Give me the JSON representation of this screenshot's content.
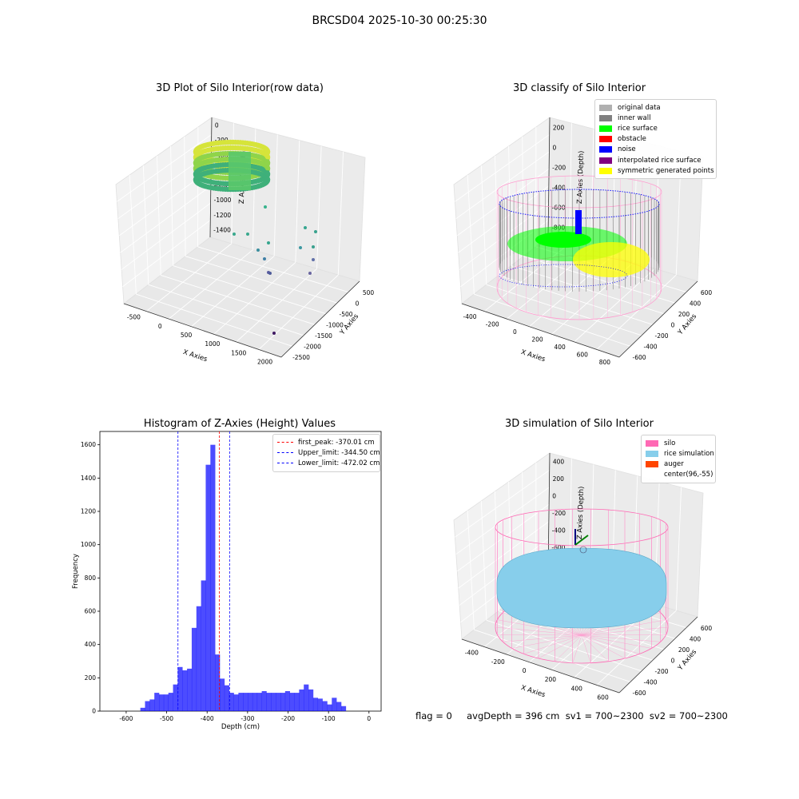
{
  "suptitle": "BRCSD04 2025-10-30 00:25:30",
  "footer": "flag = 0     avgDepth = 396 cm  sv1 = 700~2300  sv2 = 700~2300",
  "panels": {
    "raw": {
      "title": "3D Plot of Silo Interior(row data)",
      "xlabel": "X Axies",
      "ylabel": "Y Axies",
      "zlabel": "Z Axies (Depth)",
      "xticks": [
        "-500",
        "0",
        "500",
        "1000",
        "1500",
        "2000"
      ],
      "yticks": [
        "500",
        "0",
        "-500",
        "-1000",
        "-1500",
        "-2000",
        "-2500"
      ],
      "zticks": [
        "0",
        "-200",
        "-400",
        "-600",
        "-800",
        "-1000",
        "-1200",
        "-1400"
      ]
    },
    "classify": {
      "title": "3D classify of Silo Interior",
      "xlabel": "X Axies",
      "ylabel": "Y Axies",
      "zlabel": "Z Axies (Depth)",
      "xticks": [
        "-400",
        "-200",
        "0",
        "200",
        "400",
        "600",
        "800"
      ],
      "yticks": [
        "600",
        "400",
        "200",
        "0",
        "-200",
        "-400",
        "-600"
      ],
      "zticks": [
        "200",
        "0",
        "-200",
        "-400",
        "-600",
        "-800"
      ],
      "legend": [
        {
          "label": "original data",
          "color": "#b0b0b0"
        },
        {
          "label": "inner wall",
          "color": "#808080"
        },
        {
          "label": "rice surface",
          "color": "#00ff00"
        },
        {
          "label": "obstacle",
          "color": "#ff0000"
        },
        {
          "label": "noise",
          "color": "#0000ff"
        },
        {
          "label": "interpolated rice surface",
          "color": "#800080"
        },
        {
          "label": "symmetric generated points",
          "color": "#ffff00"
        }
      ]
    },
    "simulation": {
      "title": "3D simulation of Silo Interior",
      "xlabel": "X Axies",
      "ylabel": "Y Axies",
      "zlabel": "Z Axies (Depth)",
      "xticks": [
        "-400",
        "-200",
        "0",
        "200",
        "400",
        "600"
      ],
      "yticks": [
        "600",
        "400",
        "200",
        "0",
        "-200",
        "-400",
        "-600"
      ],
      "zticks": [
        "400",
        "200",
        "0",
        "-200",
        "-400",
        "-600",
        "-800"
      ],
      "legend": [
        {
          "label": "silo",
          "color": "#ff69b4"
        },
        {
          "label": "rice simulation",
          "color": "#87ceeb"
        },
        {
          "label": "auger",
          "color": "#ff4500"
        },
        {
          "label": "center(96,-55)",
          "color": "#ffffff"
        }
      ]
    }
  },
  "chart_data": {
    "type": "bar",
    "title": "Histogram of Z-Axies (Height) Values",
    "xlabel": "Depth (cm)",
    "ylabel": "Frequency",
    "xlim": [
      -665,
      30
    ],
    "ylim": [
      0,
      1680
    ],
    "xticks": [
      -600,
      -500,
      -400,
      -300,
      -200,
      -100,
      0
    ],
    "yticks": [
      0,
      200,
      400,
      600,
      800,
      1000,
      1200,
      1400,
      1600
    ],
    "bar_color": "#0000ff",
    "bin_width": 11.54,
    "bin_start": -565,
    "values": [
      20,
      60,
      70,
      110,
      100,
      100,
      110,
      160,
      265,
      245,
      255,
      500,
      630,
      785,
      1480,
      1600,
      340,
      195,
      155,
      110,
      100,
      110,
      110,
      110,
      110,
      110,
      120,
      110,
      110,
      110,
      110,
      120,
      110,
      110,
      130,
      160,
      130,
      80,
      75,
      60,
      40,
      80,
      55,
      30
    ],
    "vlines": [
      {
        "label": "first_peak: -370.01 cm",
        "x": -370.01,
        "color": "#ff0000"
      },
      {
        "label": "Upper_limit: -344.50 cm",
        "x": -344.5,
        "color": "#0000ff"
      },
      {
        "label": "Lower_limit: -472.02 cm",
        "x": -472.02,
        "color": "#0000ff"
      }
    ],
    "legend_position": "top-right"
  }
}
